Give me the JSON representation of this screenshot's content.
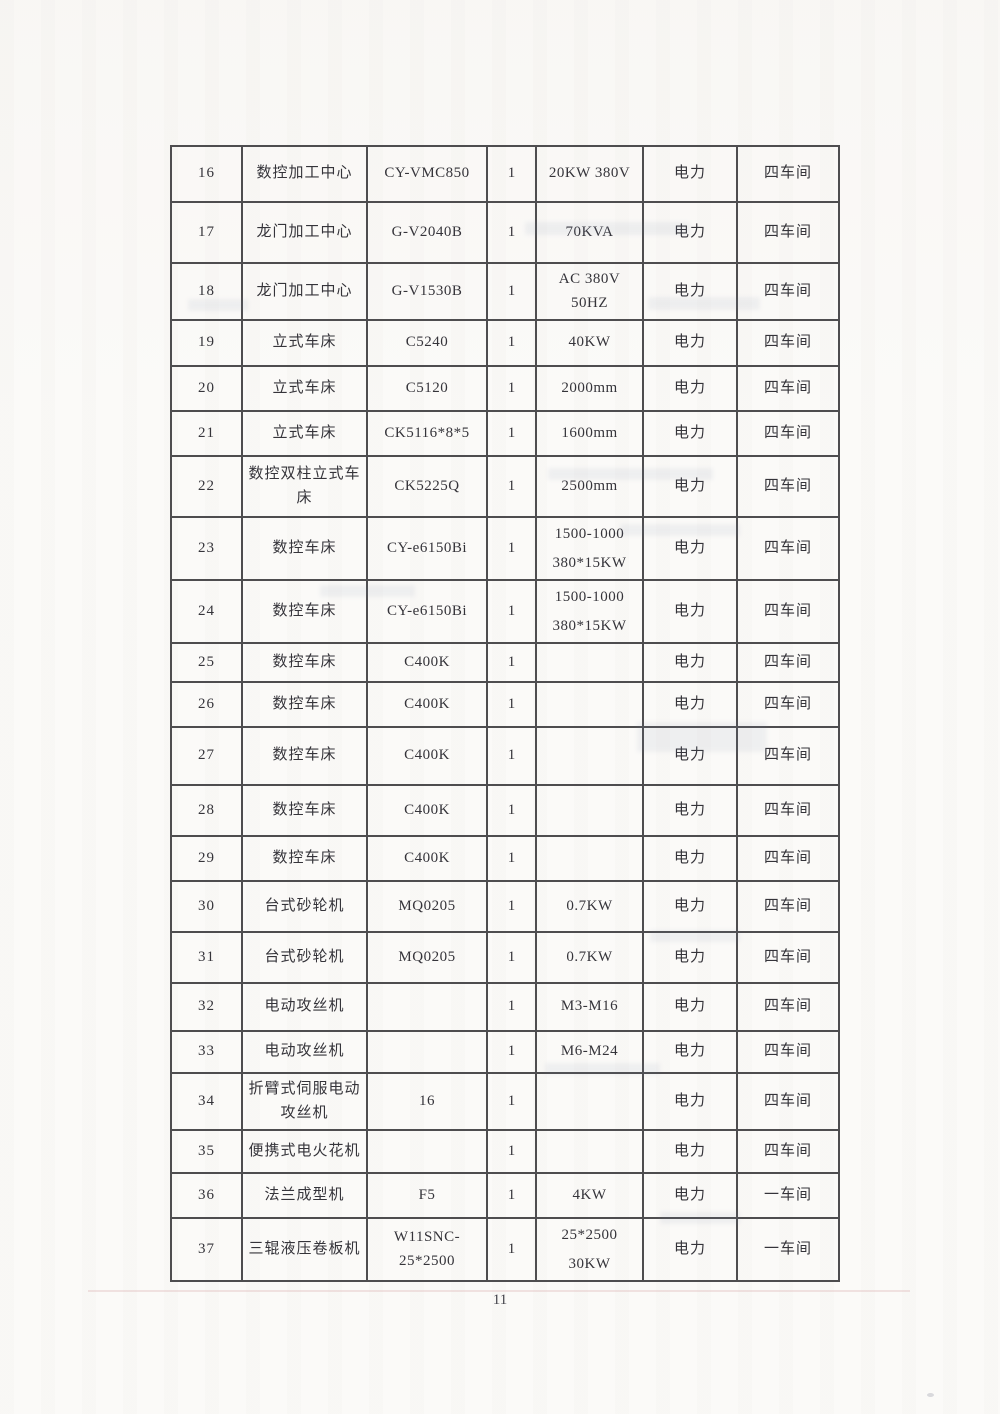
{
  "page": {
    "number": "11"
  },
  "table": {
    "rows": [
      {
        "num": "16",
        "name": "数控加工中心",
        "model": "CY-VMC850",
        "qty": "1",
        "spec": "20KW 380V",
        "power": "电力",
        "workshop": "四车间"
      },
      {
        "num": "17",
        "name": "龙门加工中心",
        "model": "G-V2040B",
        "qty": "1",
        "spec": "70KVA",
        "power": "电力",
        "workshop": "四车间"
      },
      {
        "num": "18",
        "name": "龙门加工中心",
        "model": "G-V1530B",
        "qty": "1",
        "spec": "AC 380V 50HZ",
        "power": "电力",
        "workshop": "四车间"
      },
      {
        "num": "19",
        "name": "立式车床",
        "model": "C5240",
        "qty": "1",
        "spec": "40KW",
        "power": "电力",
        "workshop": "四车间"
      },
      {
        "num": "20",
        "name": "立式车床",
        "model": "C5120",
        "qty": "1",
        "spec": "2000mm",
        "power": "电力",
        "workshop": "四车间"
      },
      {
        "num": "21",
        "name": "立式车床",
        "model": "CK5116*8*5",
        "qty": "1",
        "spec": "1600mm",
        "power": "电力",
        "workshop": "四车间"
      },
      {
        "num": "22",
        "name": "数控双柱立式车床",
        "model": "CK5225Q",
        "qty": "1",
        "spec": "2500mm",
        "power": "电力",
        "workshop": "四车间"
      },
      {
        "num": "23",
        "name": "数控车床",
        "model": "CY-e6150Bi",
        "qty": "1",
        "spec": [
          "1500-1000",
          "380*15KW"
        ],
        "power": "电力",
        "workshop": "四车间"
      },
      {
        "num": "24",
        "name": "数控车床",
        "model": "CY-e6150Bi",
        "qty": "1",
        "spec": [
          "1500-1000",
          "380*15KW"
        ],
        "power": "电力",
        "workshop": "四车间"
      },
      {
        "num": "25",
        "name": "数控车床",
        "model": "C400K",
        "qty": "1",
        "spec": "",
        "power": "电力",
        "workshop": "四车间"
      },
      {
        "num": "26",
        "name": "数控车床",
        "model": "C400K",
        "qty": "1",
        "spec": "",
        "power": "电力",
        "workshop": "四车间"
      },
      {
        "num": "27",
        "name": "数控车床",
        "model": "C400K",
        "qty": "1",
        "spec": "",
        "power": "电力",
        "workshop": "四车间"
      },
      {
        "num": "28",
        "name": "数控车床",
        "model": "C400K",
        "qty": "1",
        "spec": "",
        "power": "电力",
        "workshop": "四车间"
      },
      {
        "num": "29",
        "name": "数控车床",
        "model": "C400K",
        "qty": "1",
        "spec": "",
        "power": "电力",
        "workshop": "四车间"
      },
      {
        "num": "30",
        "name": "台式砂轮机",
        "model": "MQ0205",
        "qty": "1",
        "spec": "0.7KW",
        "power": "电力",
        "workshop": "四车间"
      },
      {
        "num": "31",
        "name": "台式砂轮机",
        "model": "MQ0205",
        "qty": "1",
        "spec": "0.7KW",
        "power": "电力",
        "workshop": "四车间"
      },
      {
        "num": "32",
        "name": "电动攻丝机",
        "model": "",
        "qty": "1",
        "spec": "M3-M16",
        "power": "电力",
        "workshop": "四车间"
      },
      {
        "num": "33",
        "name": "电动攻丝机",
        "model": "",
        "qty": "1",
        "spec": "M6-M24",
        "power": "电力",
        "workshop": "四车间"
      },
      {
        "num": "34",
        "name": "折臂式伺服电动攻丝机",
        "model": "16",
        "qty": "1",
        "spec": "",
        "power": "电力",
        "workshop": "四车间"
      },
      {
        "num": "35",
        "name": "便携式电火花机",
        "model": "",
        "qty": "1",
        "spec": "",
        "power": "电力",
        "workshop": "四车间"
      },
      {
        "num": "36",
        "name": "法兰成型机",
        "model": "F5",
        "qty": "1",
        "spec": "4KW",
        "power": "电力",
        "workshop": "一车间"
      },
      {
        "num": "37",
        "name": "三辊液压卷板机",
        "model": "W11SNC-25*2500",
        "qty": "1",
        "spec": [
          "25*2500",
          "30KW"
        ],
        "power": "电力",
        "workshop": "一车间"
      }
    ]
  }
}
